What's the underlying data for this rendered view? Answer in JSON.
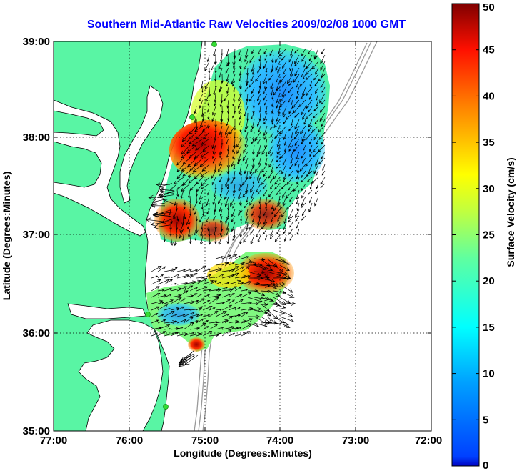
{
  "title": "Southern Mid-Atlantic Raw Velocities 2009/02/08 1000 GMT",
  "map": {
    "xlabel": "Longitude (Degrees:Minutes)",
    "ylabel": "Latitude (Degrees:Minutes)",
    "x_ticks": [
      "77:00",
      "76:00",
      "75:00",
      "74:00",
      "73:00",
      "72:00"
    ],
    "y_ticks": [
      "39:00",
      "38:00",
      "37:00",
      "36:00",
      "35:00"
    ],
    "grid": "dotted",
    "colors": {
      "land": "#59f5a4",
      "water": "#ffffff",
      "coastline": "#000000",
      "bathymetry": "#9a9a9a",
      "stations": "#33dd33",
      "vectors": "#000000"
    }
  },
  "colorbar": {
    "label": "Surface Velocity (cm/s)",
    "ticks": [
      "0",
      "5",
      "10",
      "15",
      "20",
      "25",
      "30",
      "35",
      "40",
      "45",
      "50"
    ],
    "range": [
      0,
      50
    ],
    "colormap": "jet"
  }
}
